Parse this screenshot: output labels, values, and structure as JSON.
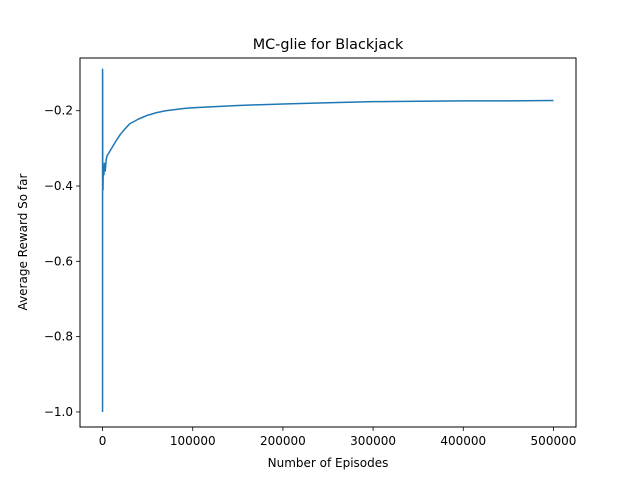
{
  "chart_data": {
    "type": "line",
    "title": "MC-glie for Blackjack",
    "xlabel": "Number of Episodes",
    "ylabel": "Average Reward So far",
    "xlim": [
      -25000,
      525000
    ],
    "ylim": [
      -1.04,
      -0.06
    ],
    "xticks": [
      0,
      100000,
      200000,
      300000,
      400000,
      500000
    ],
    "xtick_labels": [
      "0",
      "100000",
      "200000",
      "300000",
      "400000",
      "500000"
    ],
    "yticks": [
      -1.0,
      -0.8,
      -0.6,
      -0.4,
      -0.2
    ],
    "ytick_labels": [
      "−1.0",
      "−0.8",
      "−0.6",
      "−0.4",
      "−0.2"
    ],
    "grid": false,
    "series": [
      {
        "name": "",
        "color": "#1f77b4",
        "x": [
          0,
          1,
          2,
          5,
          10,
          20,
          50,
          100,
          200,
          300,
          500,
          800,
          1000,
          1500,
          2000,
          3000,
          4000,
          5000,
          7500,
          10000,
          15000,
          20000,
          25000,
          30000,
          40000,
          50000,
          60000,
          70000,
          80000,
          90000,
          100000,
          125000,
          150000,
          175000,
          200000,
          250000,
          300000,
          350000,
          400000,
          450000,
          500000
        ],
        "y": [
          -1.0,
          -0.09,
          -0.33,
          -0.12,
          -0.2,
          -0.09,
          -0.43,
          -0.1,
          -0.4,
          -0.37,
          -0.41,
          -0.35,
          -0.36,
          -0.37,
          -0.34,
          -0.36,
          -0.33,
          -0.32,
          -0.31,
          -0.3,
          -0.28,
          -0.262,
          -0.248,
          -0.235,
          -0.222,
          -0.212,
          -0.205,
          -0.2,
          -0.197,
          -0.194,
          -0.192,
          -0.189,
          -0.186,
          -0.184,
          -0.182,
          -0.179,
          -0.176,
          -0.175,
          -0.174,
          -0.174,
          -0.173
        ]
      }
    ]
  }
}
